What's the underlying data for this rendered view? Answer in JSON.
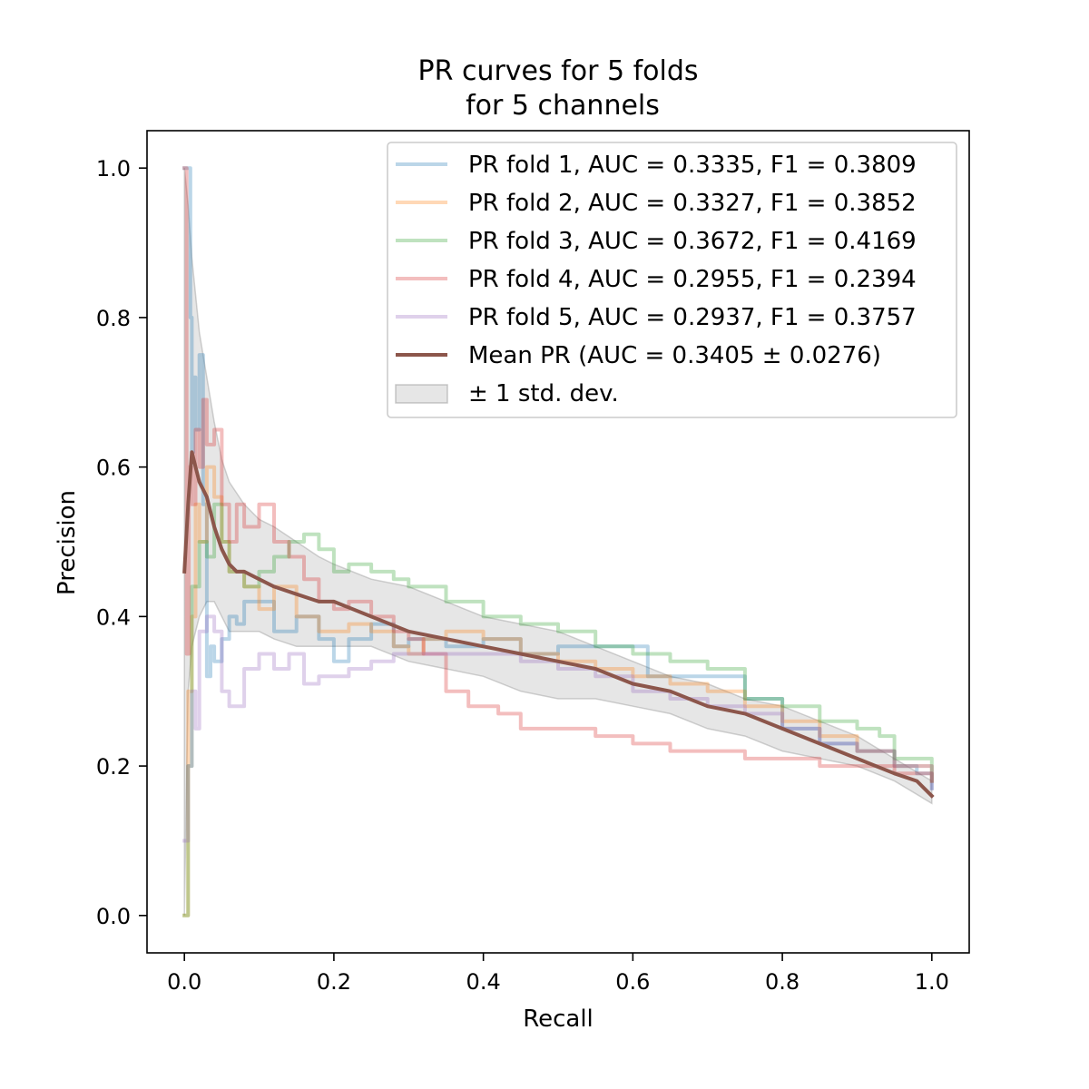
{
  "chart_data": {
    "type": "line",
    "title": [
      "PR curves for 5 folds",
      "for 5 channels"
    ],
    "xlabel": "Recall",
    "ylabel": "Precision",
    "xlim": [
      -0.05,
      1.05
    ],
    "ylim": [
      -0.05,
      1.05
    ],
    "xticks": [
      0.0,
      0.2,
      0.4,
      0.6,
      0.8,
      1.0
    ],
    "yticks": [
      0.0,
      0.2,
      0.4,
      0.6,
      0.8,
      1.0
    ],
    "xtick_labels": [
      "0.0",
      "0.2",
      "0.4",
      "0.6",
      "0.8",
      "1.0"
    ],
    "ytick_labels": [
      "0.0",
      "0.2",
      "0.4",
      "0.6",
      "0.8",
      "1.0"
    ],
    "grid": false,
    "legend_position": "top-right",
    "series": [
      {
        "name": "PR fold 1, AUC = 0.3335, F1 = 0.3809",
        "color": "#1f77b4",
        "opacity": 0.3,
        "stroke_px": 4,
        "x": [
          0.0,
          0.005,
          0.008,
          0.01,
          0.012,
          0.015,
          0.02,
          0.025,
          0.03,
          0.035,
          0.04,
          0.05,
          0.06,
          0.07,
          0.08,
          0.1,
          0.12,
          0.15,
          0.18,
          0.2,
          0.22,
          0.25,
          0.28,
          0.3,
          0.35,
          0.4,
          0.45,
          0.5,
          0.55,
          0.6,
          0.62,
          0.65,
          0.7,
          0.75,
          0.8,
          0.85,
          0.9,
          0.95,
          0.98,
          1.0
        ],
        "y": [
          1.0,
          1.0,
          0.8,
          0.62,
          0.72,
          0.65,
          0.75,
          0.55,
          0.32,
          0.36,
          0.34,
          0.37,
          0.4,
          0.39,
          0.42,
          0.42,
          0.38,
          0.4,
          0.37,
          0.34,
          0.37,
          0.39,
          0.36,
          0.37,
          0.36,
          0.37,
          0.35,
          0.36,
          0.36,
          0.36,
          0.32,
          0.32,
          0.32,
          0.29,
          0.25,
          0.23,
          0.22,
          0.2,
          0.19,
          0.17
        ]
      },
      {
        "name": "PR fold 2, AUC = 0.3327, F1 = 0.3852",
        "color": "#ff7f0e",
        "opacity": 0.3,
        "stroke_px": 4,
        "x": [
          0.0,
          0.005,
          0.01,
          0.015,
          0.02,
          0.03,
          0.04,
          0.05,
          0.06,
          0.08,
          0.1,
          0.12,
          0.15,
          0.18,
          0.2,
          0.22,
          0.25,
          0.28,
          0.3,
          0.32,
          0.35,
          0.4,
          0.45,
          0.5,
          0.55,
          0.6,
          0.65,
          0.7,
          0.75,
          0.8,
          0.85,
          0.9,
          0.95,
          1.0
        ],
        "y": [
          0.0,
          0.3,
          0.4,
          0.55,
          0.5,
          0.6,
          0.56,
          0.5,
          0.46,
          0.44,
          0.41,
          0.44,
          0.4,
          0.38,
          0.38,
          0.39,
          0.38,
          0.36,
          0.35,
          0.37,
          0.38,
          0.37,
          0.35,
          0.34,
          0.33,
          0.32,
          0.31,
          0.3,
          0.28,
          0.26,
          0.24,
          0.22,
          0.2,
          0.18
        ]
      },
      {
        "name": "PR fold 3, AUC = 0.3672, F1 = 0.4169",
        "color": "#2ca02c",
        "opacity": 0.3,
        "stroke_px": 4,
        "x": [
          0.0,
          0.005,
          0.01,
          0.02,
          0.03,
          0.04,
          0.05,
          0.06,
          0.08,
          0.1,
          0.12,
          0.14,
          0.16,
          0.18,
          0.2,
          0.22,
          0.25,
          0.28,
          0.3,
          0.35,
          0.4,
          0.45,
          0.5,
          0.55,
          0.6,
          0.65,
          0.7,
          0.75,
          0.8,
          0.85,
          0.9,
          0.93,
          0.95,
          1.0
        ],
        "y": [
          0.0,
          0.2,
          0.44,
          0.5,
          0.48,
          0.55,
          0.5,
          0.46,
          0.44,
          0.46,
          0.48,
          0.5,
          0.51,
          0.49,
          0.46,
          0.47,
          0.46,
          0.45,
          0.44,
          0.42,
          0.4,
          0.39,
          0.38,
          0.36,
          0.35,
          0.34,
          0.33,
          0.29,
          0.28,
          0.26,
          0.25,
          0.24,
          0.21,
          0.18
        ]
      },
      {
        "name": "PR fold 4, AUC = 0.2955, F1 = 0.2394",
        "color": "#d62728",
        "opacity": 0.3,
        "stroke_px": 4,
        "x": [
          0.0,
          0.003,
          0.006,
          0.01,
          0.015,
          0.02,
          0.025,
          0.03,
          0.04,
          0.05,
          0.06,
          0.07,
          0.08,
          0.1,
          0.12,
          0.14,
          0.16,
          0.18,
          0.2,
          0.22,
          0.25,
          0.28,
          0.3,
          0.32,
          0.35,
          0.38,
          0.4,
          0.42,
          0.45,
          0.48,
          0.5,
          0.55,
          0.6,
          0.65,
          0.7,
          0.75,
          0.8,
          0.85,
          0.9,
          0.95,
          1.0
        ],
        "y": [
          1.0,
          0.35,
          0.6,
          0.55,
          0.65,
          0.6,
          0.69,
          0.63,
          0.65,
          0.55,
          0.5,
          0.55,
          0.52,
          0.55,
          0.5,
          0.48,
          0.45,
          0.42,
          0.41,
          0.42,
          0.4,
          0.38,
          0.37,
          0.35,
          0.3,
          0.28,
          0.28,
          0.27,
          0.25,
          0.25,
          0.25,
          0.24,
          0.23,
          0.22,
          0.22,
          0.21,
          0.21,
          0.2,
          0.2,
          0.19,
          0.18
        ]
      },
      {
        "name": "PR fold 5, AUC = 0.2937, F1 = 0.3757",
        "color": "#9467bd",
        "opacity": 0.3,
        "stroke_px": 4,
        "x": [
          0.0,
          0.005,
          0.01,
          0.015,
          0.02,
          0.03,
          0.04,
          0.05,
          0.06,
          0.08,
          0.1,
          0.12,
          0.14,
          0.16,
          0.18,
          0.2,
          0.22,
          0.25,
          0.28,
          0.3,
          0.35,
          0.4,
          0.45,
          0.5,
          0.55,
          0.6,
          0.65,
          0.7,
          0.75,
          0.8,
          0.85,
          0.9,
          0.95,
          1.0
        ],
        "y": [
          0.1,
          0.2,
          0.3,
          0.25,
          0.38,
          0.4,
          0.38,
          0.3,
          0.28,
          0.33,
          0.35,
          0.33,
          0.35,
          0.31,
          0.32,
          0.32,
          0.33,
          0.34,
          0.35,
          0.35,
          0.35,
          0.35,
          0.34,
          0.33,
          0.32,
          0.3,
          0.29,
          0.28,
          0.27,
          0.25,
          0.23,
          0.22,
          0.2,
          0.17
        ]
      },
      {
        "name": "Mean PR (AUC = 0.3405 ± 0.0276)",
        "color": "#8c564b",
        "opacity": 1.0,
        "stroke_px": 4,
        "x": [
          0.0,
          0.005,
          0.01,
          0.015,
          0.02,
          0.03,
          0.04,
          0.05,
          0.06,
          0.07,
          0.08,
          0.1,
          0.12,
          0.15,
          0.18,
          0.2,
          0.25,
          0.3,
          0.35,
          0.4,
          0.45,
          0.5,
          0.55,
          0.6,
          0.65,
          0.7,
          0.75,
          0.8,
          0.85,
          0.9,
          0.95,
          0.98,
          1.0
        ],
        "y": [
          0.46,
          0.55,
          0.62,
          0.6,
          0.58,
          0.56,
          0.52,
          0.49,
          0.47,
          0.46,
          0.46,
          0.45,
          0.44,
          0.43,
          0.42,
          0.42,
          0.4,
          0.38,
          0.37,
          0.36,
          0.35,
          0.34,
          0.33,
          0.31,
          0.3,
          0.28,
          0.27,
          0.25,
          0.23,
          0.21,
          0.19,
          0.18,
          0.16
        ]
      }
    ],
    "band": {
      "name": "± 1 std. dev.",
      "color": "#808080",
      "opacity": 0.2,
      "x": [
        0.0,
        0.005,
        0.01,
        0.02,
        0.03,
        0.04,
        0.05,
        0.06,
        0.08,
        0.1,
        0.12,
        0.15,
        0.18,
        0.2,
        0.25,
        0.3,
        0.35,
        0.4,
        0.45,
        0.5,
        0.55,
        0.6,
        0.65,
        0.7,
        0.75,
        0.8,
        0.85,
        0.9,
        0.95,
        1.0
      ],
      "upper": [
        1.0,
        0.95,
        0.88,
        0.78,
        0.72,
        0.66,
        0.61,
        0.58,
        0.55,
        0.53,
        0.52,
        0.5,
        0.48,
        0.47,
        0.45,
        0.44,
        0.42,
        0.4,
        0.39,
        0.38,
        0.36,
        0.34,
        0.32,
        0.31,
        0.29,
        0.28,
        0.26,
        0.24,
        0.21,
        0.18
      ],
      "lower": [
        0.0,
        0.3,
        0.36,
        0.4,
        0.42,
        0.42,
        0.4,
        0.38,
        0.38,
        0.38,
        0.37,
        0.36,
        0.36,
        0.36,
        0.36,
        0.34,
        0.33,
        0.32,
        0.3,
        0.29,
        0.29,
        0.28,
        0.27,
        0.25,
        0.24,
        0.22,
        0.21,
        0.2,
        0.18,
        0.15
      ]
    }
  }
}
